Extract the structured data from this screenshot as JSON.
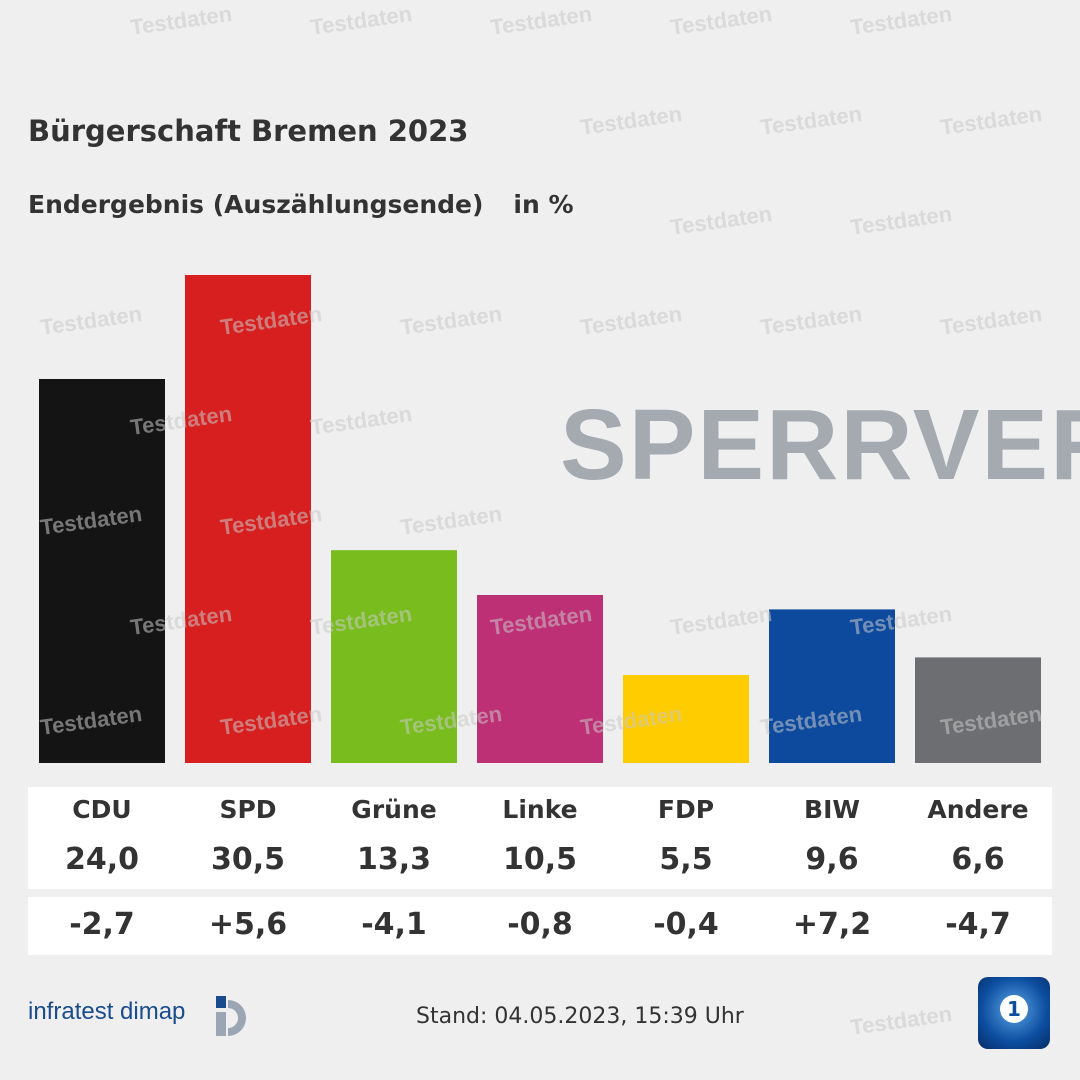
{
  "header": {
    "title": "Bürgerschaft Bremen 2023",
    "subtitle": "Endergebnis (Auszählungsende)",
    "unit": "in %"
  },
  "chart_data": {
    "type": "bar",
    "title": "Bürgerschaft Bremen 2023",
    "subtitle": "Endergebnis (Auszählungsende)",
    "ylabel": "in %",
    "ylim": [
      0,
      32
    ],
    "grid": false,
    "categories": [
      "CDU",
      "SPD",
      "Grüne",
      "Linke",
      "FDP",
      "BIW",
      "Andere"
    ],
    "values": [
      24.0,
      30.5,
      13.3,
      10.5,
      5.5,
      9.6,
      6.6
    ],
    "value_labels": [
      "24,0",
      "30,5",
      "13,3",
      "10,5",
      "5,5",
      "9,6",
      "6,6"
    ],
    "changes": [
      -2.7,
      5.6,
      -4.1,
      -0.8,
      -0.4,
      7.2,
      -4.7
    ],
    "change_labels": [
      "-2,7",
      "+5,6",
      "-4,1",
      "-0,8",
      "-0,4",
      "+7,2",
      "-4,7"
    ],
    "colors": [
      "#141414",
      "#d71f1f",
      "#78bc1e",
      "#be3075",
      "#ffcc00",
      "#0d4a9e",
      "#6d6e71"
    ]
  },
  "footer": {
    "source": "infratest dimap",
    "stand": "Stand:  04.05.2023, 15:39 Uhr",
    "tagesschau_mark": "1"
  },
  "overlay": {
    "watermark": "Testdaten",
    "embargo": "SPERRVER"
  }
}
